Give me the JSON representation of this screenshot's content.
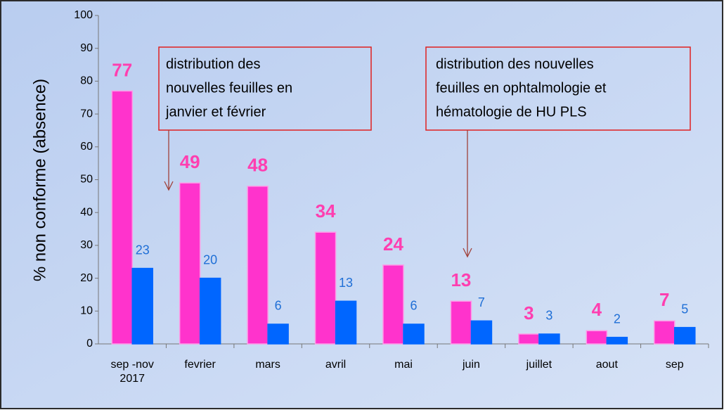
{
  "chart_data": {
    "type": "bar",
    "y_label": "% non conforme (absence)",
    "categories": [
      "sep -nov 2017",
      "fevrier",
      "mars",
      "avril",
      "mai",
      "juin",
      "juillet",
      "aout",
      "sep"
    ],
    "series": [
      {
        "color": "#ff33cc",
        "values": [
          77,
          49,
          48,
          34,
          24,
          13,
          3,
          4,
          7
        ]
      },
      {
        "color": "#0066ff",
        "values": [
          23,
          20,
          6,
          13,
          6,
          7,
          3,
          2,
          5
        ]
      }
    ],
    "ylim": [
      0,
      100
    ],
    "yticks": [
      0,
      10,
      20,
      30,
      40,
      50,
      60,
      70,
      80,
      90,
      100
    ],
    "annotations": [
      {
        "lines": [
          "distribution des",
          "nouvelles feuilles en",
          "janvier et février"
        ]
      },
      {
        "lines": [
          "distribution des  nouvelles",
          "feuilles en ophtalmologie  et",
          "hématologie de HU PLS"
        ]
      }
    ]
  }
}
